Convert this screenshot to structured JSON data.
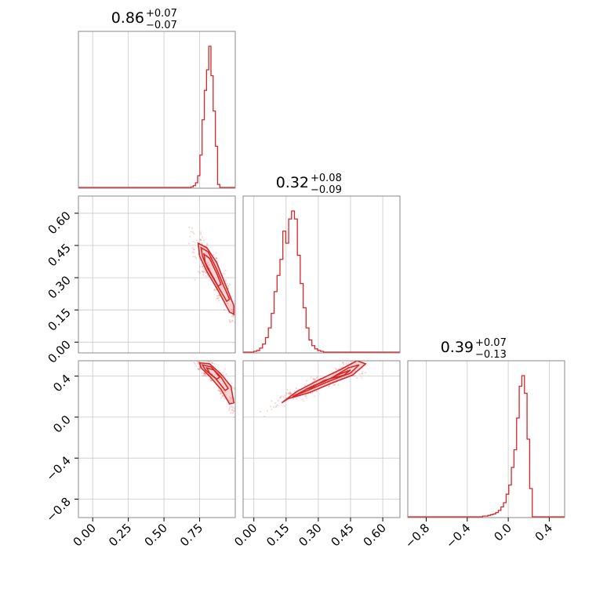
{
  "chart_data": {
    "type": "corner",
    "color": "#d62728",
    "grid": true,
    "titles": [
      {
        "value": "0.86",
        "upper": "+0.07",
        "lower": "−0.07"
      },
      {
        "value": "0.32",
        "upper": "+0.08",
        "lower": "−0.09"
      },
      {
        "value": "0.39",
        "upper": "+0.07",
        "lower": "−0.13"
      }
    ],
    "params": [
      {
        "range": [
          -0.1,
          1.0
        ],
        "ticks": [
          0.0,
          0.25,
          0.5,
          0.75
        ],
        "tick_labels": [
          "0.00",
          "0.25",
          "0.50",
          "0.75"
        ]
      },
      {
        "range": [
          -0.05,
          0.68
        ],
        "ticks": [
          0.0,
          0.15,
          0.3,
          0.45,
          0.6
        ],
        "tick_labels": [
          "0.00",
          "0.15",
          "0.30",
          "0.45",
          "0.60"
        ]
      },
      {
        "range": [
          -0.98,
          0.55
        ],
        "ticks": [
          -0.8,
          -0.4,
          0.0,
          0.4
        ],
        "tick_labels": [
          "−0.8",
          "−0.4",
          "0.0",
          "0.4"
        ]
      }
    ],
    "hist": [
      {
        "edges_start": 0.69,
        "bin_width": 0.0155,
        "counts": [
          1,
          3,
          8,
          20,
          55,
          115,
          165,
          200,
          240,
          190,
          130,
          70,
          5
        ]
      },
      {
        "edges_start": 0.0,
        "bin_width": 0.0135,
        "counts": [
          1,
          2,
          5,
          10,
          18,
          30,
          48,
          75,
          95,
          115,
          150,
          135,
          165,
          175,
          165,
          120,
          85,
          55,
          30,
          15,
          8,
          4,
          2,
          1
        ]
      },
      {
        "edges_start": -0.25,
        "bin_width": 0.0255,
        "counts": [
          1,
          1,
          2,
          3,
          4,
          6,
          9,
          14,
          20,
          32,
          45,
          70,
          95,
          140,
          185,
          200,
          175,
          110,
          40
        ]
      }
    ],
    "pairs": [
      {
        "x": 0,
        "y": 1,
        "levels": [
          [
            [
              0.74,
              0.46
            ],
            [
              0.8,
              0.44
            ],
            [
              0.87,
              0.37
            ],
            [
              0.93,
              0.27
            ],
            [
              0.99,
              0.17
            ],
            [
              0.99,
              0.13
            ],
            [
              0.96,
              0.14
            ],
            [
              0.88,
              0.24
            ],
            [
              0.8,
              0.33
            ],
            [
              0.75,
              0.4
            ]
          ],
          [
            [
              0.76,
              0.44
            ],
            [
              0.81,
              0.42
            ],
            [
              0.87,
              0.34
            ],
            [
              0.92,
              0.26
            ],
            [
              0.96,
              0.2
            ],
            [
              0.94,
              0.19
            ],
            [
              0.87,
              0.27
            ],
            [
              0.8,
              0.35
            ],
            [
              0.77,
              0.4
            ]
          ],
          [
            [
              0.78,
              0.41
            ],
            [
              0.82,
              0.39
            ],
            [
              0.87,
              0.32
            ],
            [
              0.9,
              0.27
            ],
            [
              0.88,
              0.26
            ],
            [
              0.83,
              0.32
            ],
            [
              0.79,
              0.37
            ]
          ]
        ]
      },
      {
        "x": 0,
        "y": 2,
        "levels": [
          [
            [
              0.75,
              0.53
            ],
            [
              0.82,
              0.52
            ],
            [
              0.9,
              0.42
            ],
            [
              0.97,
              0.3
            ],
            [
              0.99,
              0.14
            ],
            [
              0.96,
              0.13
            ],
            [
              0.9,
              0.27
            ],
            [
              0.82,
              0.4
            ],
            [
              0.76,
              0.48
            ]
          ],
          [
            [
              0.77,
              0.51
            ],
            [
              0.83,
              0.49
            ],
            [
              0.9,
              0.39
            ],
            [
              0.95,
              0.28
            ],
            [
              0.93,
              0.26
            ],
            [
              0.86,
              0.38
            ],
            [
              0.79,
              0.46
            ]
          ],
          [
            [
              0.8,
              0.48
            ],
            [
              0.85,
              0.46
            ],
            [
              0.89,
              0.39
            ],
            [
              0.87,
              0.37
            ],
            [
              0.82,
              0.43
            ]
          ]
        ]
      },
      {
        "x": 1,
        "y": 2,
        "levels": [
          [
            [
              0.13,
              0.14
            ],
            [
              0.2,
              0.25
            ],
            [
              0.3,
              0.36
            ],
            [
              0.4,
              0.46
            ],
            [
              0.48,
              0.55
            ],
            [
              0.52,
              0.52
            ],
            [
              0.46,
              0.41
            ],
            [
              0.36,
              0.33
            ],
            [
              0.26,
              0.24
            ],
            [
              0.16,
              0.18
            ]
          ],
          [
            [
              0.18,
              0.2
            ],
            [
              0.27,
              0.3
            ],
            [
              0.36,
              0.38
            ],
            [
              0.44,
              0.48
            ],
            [
              0.49,
              0.51
            ],
            [
              0.45,
              0.43
            ],
            [
              0.35,
              0.35
            ],
            [
              0.25,
              0.26
            ]
          ],
          [
            [
              0.24,
              0.27
            ],
            [
              0.32,
              0.34
            ],
            [
              0.4,
              0.42
            ],
            [
              0.45,
              0.46
            ],
            [
              0.42,
              0.41
            ],
            [
              0.33,
              0.36
            ],
            [
              0.27,
              0.29
            ]
          ]
        ]
      }
    ]
  }
}
